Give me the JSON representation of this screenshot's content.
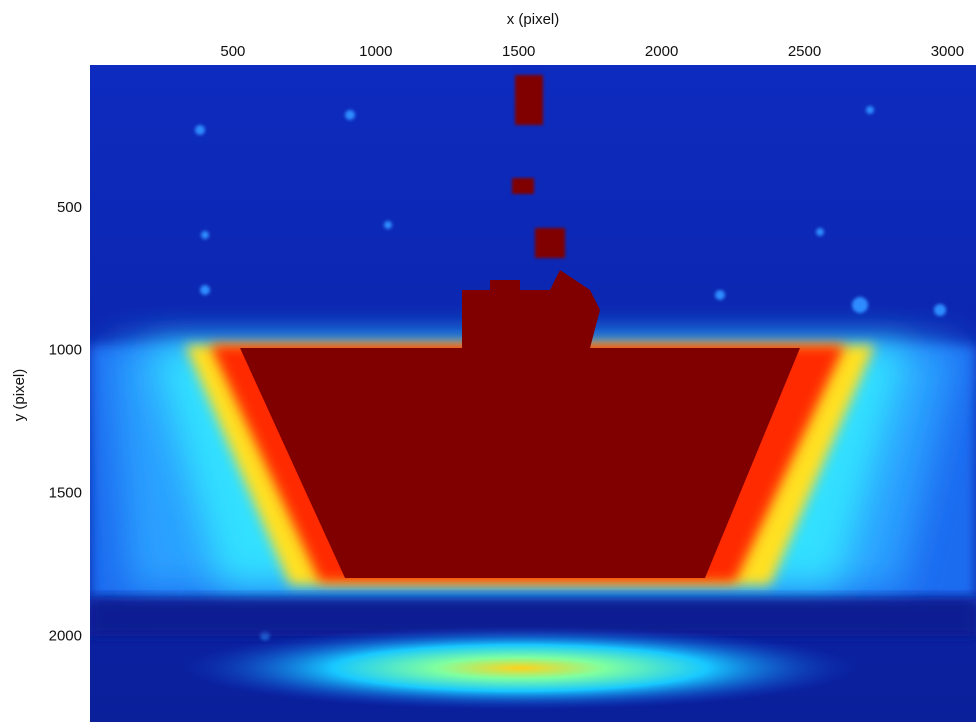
{
  "chart_data": {
    "type": "heatmap",
    "xlabel": "x (pixel)",
    "ylabel": "y (pixel)",
    "xlim": [
      0,
      3100
    ],
    "ylim": [
      0,
      2300
    ],
    "xticks": [
      500,
      1000,
      1500,
      2000,
      2500,
      3000
    ],
    "yticks": [
      500,
      1000,
      1500,
      2000
    ]
  }
}
